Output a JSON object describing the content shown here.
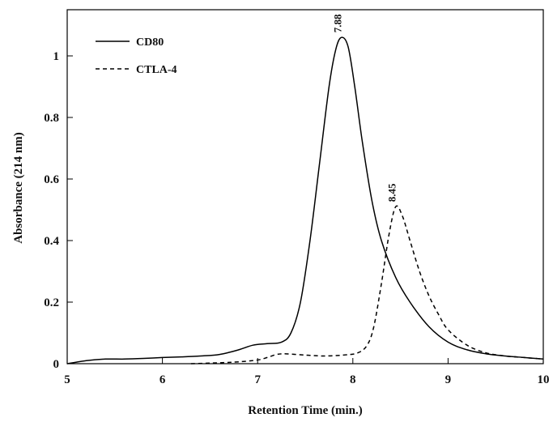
{
  "chart_data": {
    "type": "line",
    "title": "",
    "xlabel": "Retention Time  (min.)",
    "ylabel": "Absorbance  (214 nm)",
    "xlim": [
      5,
      10
    ],
    "ylim": [
      0,
      1.15
    ],
    "x_ticks": [
      5,
      6,
      7,
      8,
      9,
      10
    ],
    "y_ticks": [
      0,
      0.2,
      0.4,
      0.6,
      0.8,
      1
    ],
    "x_tick_labels": [
      "5",
      "6",
      "7",
      "8",
      "9",
      "10"
    ],
    "y_tick_labels": [
      "0",
      "0.2",
      "0.4",
      "0.6",
      "0.8",
      "1"
    ],
    "grid": false,
    "legend_position": "top-left",
    "series": [
      {
        "name": "CD80",
        "style": "solid",
        "color": "#000000",
        "points": [
          [
            5.0,
            0.0
          ],
          [
            5.2,
            0.01
          ],
          [
            5.4,
            0.015
          ],
          [
            5.6,
            0.015
          ],
          [
            5.8,
            0.017
          ],
          [
            6.0,
            0.02
          ],
          [
            6.2,
            0.022
          ],
          [
            6.4,
            0.025
          ],
          [
            6.6,
            0.03
          ],
          [
            6.8,
            0.045
          ],
          [
            6.95,
            0.06
          ],
          [
            7.1,
            0.065
          ],
          [
            7.25,
            0.07
          ],
          [
            7.35,
            0.1
          ],
          [
            7.45,
            0.2
          ],
          [
            7.55,
            0.4
          ],
          [
            7.65,
            0.65
          ],
          [
            7.75,
            0.9
          ],
          [
            7.82,
            1.02
          ],
          [
            7.88,
            1.06
          ],
          [
            7.95,
            1.03
          ],
          [
            8.02,
            0.9
          ],
          [
            8.1,
            0.72
          ],
          [
            8.2,
            0.53
          ],
          [
            8.3,
            0.4
          ],
          [
            8.45,
            0.28
          ],
          [
            8.6,
            0.2
          ],
          [
            8.8,
            0.12
          ],
          [
            9.0,
            0.07
          ],
          [
            9.2,
            0.045
          ],
          [
            9.4,
            0.032
          ],
          [
            9.6,
            0.025
          ],
          [
            9.8,
            0.02
          ],
          [
            10.0,
            0.015
          ]
        ]
      },
      {
        "name": "CTLA-4",
        "style": "dashed",
        "color": "#000000",
        "points": [
          [
            6.3,
            0.0
          ],
          [
            6.6,
            0.003
          ],
          [
            6.8,
            0.006
          ],
          [
            7.0,
            0.012
          ],
          [
            7.1,
            0.02
          ],
          [
            7.2,
            0.03
          ],
          [
            7.3,
            0.032
          ],
          [
            7.5,
            0.028
          ],
          [
            7.7,
            0.025
          ],
          [
            7.9,
            0.028
          ],
          [
            8.05,
            0.035
          ],
          [
            8.15,
            0.06
          ],
          [
            8.22,
            0.12
          ],
          [
            8.3,
            0.26
          ],
          [
            8.38,
            0.42
          ],
          [
            8.45,
            0.51
          ],
          [
            8.52,
            0.48
          ],
          [
            8.6,
            0.4
          ],
          [
            8.7,
            0.3
          ],
          [
            8.8,
            0.22
          ],
          [
            8.9,
            0.16
          ],
          [
            9.0,
            0.11
          ],
          [
            9.2,
            0.06
          ],
          [
            9.4,
            0.035
          ],
          [
            9.6,
            0.025
          ],
          [
            9.8,
            0.02
          ],
          [
            10.0,
            0.015
          ]
        ]
      }
    ],
    "annotations": [
      {
        "text": "7.88",
        "x": 7.88,
        "y": 1.06,
        "series": "CD80"
      },
      {
        "text": "8.45",
        "x": 8.45,
        "y": 0.51,
        "series": "CTLA-4"
      }
    ]
  }
}
